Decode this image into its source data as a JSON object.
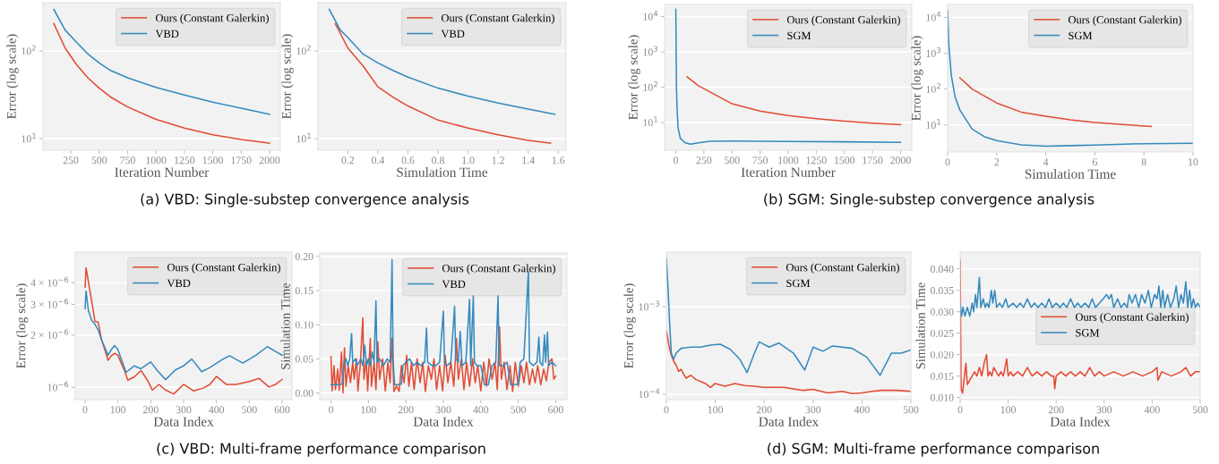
{
  "chart_data": [
    {
      "type": "line",
      "xlabel": "Iteration Number",
      "ylabel": "Error (log scale)",
      "annotations": [
        "(a) VBD: Single-substep convergence analysis"
      ],
      "log": "y",
      "grid": "y",
      "legend": "top right",
      "xlim": [
        5,
        2095
      ],
      "ylim": [
        7.4,
        355
      ],
      "xticks": [
        250,
        500,
        750,
        1000,
        1250,
        1500,
        1750,
        2000
      ],
      "yticks": [
        {
          "value": 10,
          "label": "10$^{1}$"
        },
        {
          "value": 100,
          "label": "10$^{2}$"
        }
      ],
      "series": [
        {
          "name": "Ours (Constant Galerkin)",
          "color": "#e24a33",
          "x": [
            100,
            200,
            300,
            400,
            500,
            600,
            750,
            1000,
            1250,
            1500,
            1750,
            2000
          ],
          "values": [
            205,
            108,
            70,
            49.5,
            37.7,
            29.9,
            23,
            16.6,
            13.2,
            11.1,
            9.8,
            8.9
          ]
        },
        {
          "name": "VBD",
          "color": "#348abd",
          "x": [
            100,
            200,
            300,
            400,
            500,
            600,
            750,
            1000,
            1250,
            1500,
            1750,
            2000
          ],
          "values": [
            298,
            173,
            126,
            92.5,
            73,
            60,
            49.5,
            38.5,
            31.5,
            26.1,
            22.3,
            19.0
          ]
        }
      ]
    },
    {
      "type": "line",
      "xlabel": "Simulation Time",
      "ylabel": "Error (log scale)",
      "log": "y",
      "grid": "y",
      "legend": "top right",
      "xlim": [
        0.001,
        1.652
      ],
      "ylim": [
        7.4,
        355
      ],
      "xticks": [
        0.2,
        0.4,
        0.6,
        0.8,
        {
          "value": 1.0,
          "label": "1.0"
        },
        1.2,
        1.4,
        1.6
      ],
      "yticks": [
        {
          "value": 10,
          "label": "10$^{1}$"
        },
        {
          "value": 100,
          "label": "10$^{2}$"
        }
      ],
      "series": [
        {
          "name": "Ours (Constant Galerkin)",
          "color": "#e24a33",
          "x": [
            0.116,
            0.2,
            0.3,
            0.4,
            0.5,
            0.6,
            0.8,
            1.0,
            1.2,
            1.4,
            1.549
          ],
          "values": [
            205,
            108,
            68,
            39,
            29.8,
            23.6,
            16.3,
            13.2,
            11.1,
            9.6,
            8.9
          ]
        },
        {
          "name": "VBD",
          "color": "#348abd",
          "x": [
            0.076,
            0.15,
            0.2,
            0.3,
            0.4,
            0.5,
            0.6,
            0.8,
            1.0,
            1.2,
            1.4,
            1.577
          ],
          "values": [
            298,
            173,
            142,
            92.5,
            73,
            60,
            50.3,
            37.7,
            30.6,
            25.5,
            21.8,
            19
          ]
        }
      ]
    },
    {
      "type": "line",
      "xlabel": "Iteration Number",
      "ylabel": "Error (log scale)",
      "annotations": [
        "(b) SGM: Single-substep convergence analysis"
      ],
      "log": "y",
      "grid": "y",
      "legend": "top right",
      "xlim": [
        -100,
        2100
      ],
      "ylim": [
        1.65,
        22000
      ],
      "xticks": [
        0,
        250,
        500,
        750,
        1000,
        1250,
        1500,
        1750,
        2000
      ],
      "yticks": [
        {
          "value": 10,
          "label": "10$^{1}$"
        },
        {
          "value": 100,
          "label": "10$^{2}$"
        },
        {
          "value": 1000,
          "label": "10$^{3}$"
        },
        {
          "value": 10000,
          "label": "10$^{4}$"
        }
      ],
      "series": [
        {
          "name": "Ours (Constant Galerkin)",
          "color": "#e24a33",
          "x": [
            100,
            200,
            250,
            500,
            750,
            1000,
            1250,
            1500,
            1750,
            2000
          ],
          "values": [
            198,
            110,
            91,
            34,
            21,
            15.7,
            12.9,
            11,
            9.6,
            8.7
          ]
        },
        {
          "name": "SGM",
          "color": "#348abd",
          "x": [
            0,
            3,
            6,
            10,
            20,
            40,
            80,
            130,
            200,
            300,
            500,
            1000,
            1500,
            2000
          ],
          "values": [
            16000,
            1000,
            100,
            30,
            7,
            3.6,
            2.7,
            2.45,
            2.65,
            2.95,
            3.0,
            2.9,
            2.85,
            2.75
          ]
        }
      ]
    },
    {
      "type": "line",
      "xlabel": "Simulation Time",
      "ylabel": "Error (log scale)",
      "log": "y",
      "grid": "y",
      "legend": "top right",
      "xlim": [
        0,
        10
      ],
      "ylim": [
        1.76,
        23000
      ],
      "xticks": [
        0,
        2,
        4,
        6,
        8,
        10
      ],
      "yticks": [
        {
          "value": 10,
          "label": "10$^{1}$"
        },
        {
          "value": 100,
          "label": "10$^{2}$"
        },
        {
          "value": 1000,
          "label": "10$^{3}$"
        },
        {
          "value": 10000,
          "label": "10$^{4}$"
        }
      ],
      "series": [
        {
          "name": "Ours (Constant Galerkin)",
          "color": "#e24a33",
          "x": [
            0.5,
            1,
            2,
            3,
            4,
            5,
            6,
            7,
            8.3
          ],
          "values": [
            207,
            100,
            41,
            22.8,
            17.6,
            14,
            11.7,
            10.4,
            9.1
          ]
        },
        {
          "name": "SGM",
          "color": "#348abd",
          "x": [
            0,
            0.05,
            0.15,
            0.3,
            0.5,
            1,
            1.5,
            2,
            3,
            4,
            5,
            6,
            8,
            10
          ],
          "values": [
            16000,
            1700,
            245,
            62,
            26,
            7.7,
            4.7,
            3.66,
            2.8,
            2.55,
            2.65,
            2.75,
            3.0,
            3.1
          ]
        }
      ]
    },
    {
      "type": "line",
      "xlabel": "Data Index",
      "ylabel": "Error (log scale)",
      "annotations": [
        "(c) VBD: Multi-frame performance comparison"
      ],
      "log": "y",
      "grid": "y",
      "legend": "top right",
      "xlim": [
        -30,
        630
      ],
      "ylim": [
        8.5e-07,
        6e-06
      ],
      "xticks": [
        0,
        100,
        200,
        300,
        400,
        500,
        600
      ],
      "yticks": [
        {
          "value": 1e-06,
          "label": "10$^{−6}$"
        },
        {
          "value": 2e-06,
          "label": "2 × 10$^{−6}$"
        },
        {
          "value": 3e-06,
          "label": "3 × 10$^{−6}$"
        },
        {
          "value": 4e-06,
          "label": "4 × 10$^{−6}$"
        }
      ],
      "series": [
        {
          "name": "Ours (Constant Galerkin)",
          "color": "#e24a33",
          "x": [
            0,
            3,
            10,
            20,
            30,
            40,
            50,
            60,
            70,
            80,
            90,
            100,
            110,
            120,
            130,
            150,
            170,
            190,
            205,
            225,
            245,
            270,
            300,
            330,
            360,
            380,
            400,
            430,
            460,
            500,
            530,
            560,
            580,
            600
          ],
          "values": [
            3.77e-06,
            4.87e-06,
            4.07e-06,
            3.14e-06,
            2.4e-06,
            2.37e-06,
            1.88e-06,
            1.65e-06,
            1.43e-06,
            1.52e-06,
            1.57e-06,
            1.53e-06,
            1.38e-06,
            1.25e-06,
            1.1e-06,
            1.15e-06,
            1.25e-06,
            1.1e-06,
            9.65e-07,
            1.04e-06,
            9.65e-07,
            9.17e-07,
            1.04e-06,
            9.55e-07,
            9.9e-07,
            1.04e-06,
            1.155e-06,
            1.04e-06,
            1.04e-06,
            1.08e-06,
            1.125e-06,
            1.005e-06,
            1.04e-06,
            1.11e-06
          ]
        },
        {
          "name": "VBD",
          "color": "#348abd",
          "x": [
            0,
            3,
            10,
            20,
            30,
            40,
            50,
            60,
            70,
            80,
            90,
            100,
            110,
            125,
            150,
            170,
            200,
            220,
            245,
            275,
            300,
            325,
            355,
            380,
            420,
            440,
            480,
            520,
            555,
            580,
            600
          ],
          "values": [
            2.84e-06,
            3.58e-06,
            2.77e-06,
            2.43e-06,
            2.31e-06,
            2.14e-06,
            1.88e-06,
            1.7e-06,
            1.53e-06,
            1.65e-06,
            1.74e-06,
            1.65e-06,
            1.455e-06,
            1.22e-06,
            1.33e-06,
            1.28e-06,
            1.4e-06,
            1.25e-06,
            1.108e-06,
            1.26e-06,
            1.33e-06,
            1.455e-06,
            1.23e-06,
            1.3e-06,
            1.455e-06,
            1.52e-06,
            1.38e-06,
            1.53e-06,
            1.715e-06,
            1.61e-06,
            1.53e-06
          ]
        }
      ]
    },
    {
      "type": "line",
      "xlabel": "Data Index",
      "ylabel": "Simulation Time",
      "grid": "y",
      "legend": "top right",
      "xlim": [
        -30,
        630
      ],
      "ylim": [
        -0.0098,
        0.205
      ],
      "xticks": [
        0,
        100,
        200,
        300,
        400,
        500,
        600
      ],
      "yticks": [
        {
          "value": 0,
          "label": "0.00"
        },
        {
          "value": 0.05,
          "label": "0.05"
        },
        {
          "value": 0.1,
          "label": "0.10"
        },
        {
          "value": 0.15,
          "label": "0.15"
        },
        {
          "value": 0.2,
          "label": "0.20"
        }
      ],
      "series": [
        {
          "name": "Ours (Constant Galerkin)",
          "color": "#e24a33",
          "x": [
            0,
            3,
            8,
            12,
            18,
            22,
            28,
            32,
            36,
            40,
            46,
            52,
            58,
            62,
            68,
            72,
            78,
            85,
            88,
            94,
            98,
            105,
            108,
            115,
            120,
            125,
            130,
            138,
            145,
            152,
            158,
            163,
            168,
            175,
            182,
            188,
            195,
            202,
            208,
            215,
            222,
            230,
            238,
            245,
            252,
            260,
            268,
            275,
            282,
            290,
            298,
            305,
            312,
            320,
            328,
            335,
            340,
            348,
            355,
            362,
            370,
            378,
            385,
            392,
            400,
            408,
            415,
            422,
            430,
            438,
            444,
            450,
            455,
            462,
            470,
            478,
            485,
            492,
            500,
            508,
            515,
            522,
            530,
            538,
            545,
            552,
            560,
            568,
            575,
            582,
            590,
            595,
            600
          ],
          "values": [
            0.053,
            0.003,
            0.04,
            0.005,
            0.035,
            0.004,
            0.06,
            0.0,
            0.066,
            0.01,
            0.04,
            0.015,
            0.045,
            0.02,
            0.05,
            0.003,
            0.04,
            0.11,
            0.02,
            0.05,
            0.003,
            0.08,
            0.01,
            0.045,
            0.005,
            0.075,
            0.02,
            0.05,
            0.003,
            0.045,
            0.015,
            0.08,
            0.002,
            0.01,
            0.002,
            0.04,
            0.015,
            0.055,
            0.01,
            0.045,
            0.005,
            0.05,
            0.015,
            0.045,
            0.002,
            0.04,
            0.02,
            0.05,
            0.005,
            0.04,
            0.003,
            0.055,
            0.015,
            0.045,
            0.01,
            0.08,
            0.02,
            0.05,
            0.005,
            0.045,
            0.01,
            0.05,
            0.015,
            0.04,
            0.003,
            0.045,
            0.01,
            0.05,
            0.02,
            0.045,
            0.005,
            0.097,
            0.02,
            0.045,
            0.005,
            0.04,
            0.002,
            0.045,
            0.01,
            0.04,
            0.015,
            0.045,
            0.012,
            0.035,
            0.015,
            0.04,
            0.012,
            0.035,
            0.018,
            0.045,
            0.05,
            0.02,
            0.025
          ]
        },
        {
          "name": "VBD",
          "color": "#348abd",
          "x": [
            0,
            10,
            20,
            30,
            35,
            40,
            45,
            50,
            55,
            58,
            65,
            70,
            80,
            85,
            90,
            95,
            100,
            105,
            110,
            115,
            120,
            123,
            130,
            140,
            150,
            158,
            163,
            166,
            170,
            180,
            188,
            192,
            200,
            210,
            220,
            230,
            240,
            250,
            255,
            258,
            270,
            280,
            290,
            300,
            303,
            310,
            320,
            330,
            333,
            340,
            345,
            350,
            360,
            370,
            373,
            380,
            383,
            390,
            400,
            410,
            420,
            430,
            440,
            446,
            449,
            460,
            470,
            480,
            490,
            500,
            505,
            515,
            527,
            530,
            540,
            550,
            555,
            558,
            565,
            570,
            573,
            578,
            581,
            590,
            600
          ],
          "values": [
            0.012,
            0.012,
            0.012,
            0.013,
            0.045,
            0.05,
            0.04,
            0.05,
            0.087,
            0.045,
            0.05,
            0.04,
            0.05,
            0.04,
            0.07,
            0.04,
            0.05,
            0.04,
            0.06,
            0.045,
            0.135,
            0.045,
            0.05,
            0.04,
            0.05,
            0.045,
            0.195,
            0.045,
            0.012,
            0.012,
            0.013,
            0.04,
            0.045,
            0.05,
            0.04,
            0.045,
            0.04,
            0.045,
            0.095,
            0.045,
            0.04,
            0.04,
            0.045,
            0.12,
            0.045,
            0.04,
            0.045,
            0.127,
            0.05,
            0.045,
            0.09,
            0.04,
            0.045,
            0.137,
            0.04,
            0.142,
            0.045,
            0.04,
            0.04,
            0.012,
            0.012,
            0.04,
            0.045,
            0.142,
            0.04,
            0.04,
            0.045,
            0.012,
            0.012,
            0.013,
            0.045,
            0.05,
            0.178,
            0.045,
            0.04,
            0.045,
            0.082,
            0.045,
            0.04,
            0.085,
            0.045,
            0.089,
            0.04,
            0.045,
            0.04
          ]
        }
      ]
    },
    {
      "type": "line",
      "xlabel": "Data Index",
      "ylabel": "Error (log scale)",
      "annotations": [
        "(d) SGM: Multi-frame performance comparison"
      ],
      "log": "y",
      "grid": "y",
      "legend": "top right",
      "xlim": [
        0,
        500
      ],
      "ylim": [
        8.7e-05,
        0.0042
      ],
      "xticks": [
        0,
        100,
        200,
        300,
        400,
        500
      ],
      "yticks": [
        {
          "value": 0.0001,
          "label": "10$^{−4}$"
        },
        {
          "value": 0.001,
          "label": "10$^{−3}$"
        }
      ],
      "series": [
        {
          "name": "Ours (Constant Galerkin)",
          "color": "#e24a33",
          "x": [
            0,
            5,
            10,
            15,
            20,
            25,
            30,
            40,
            50,
            60,
            80,
            90,
            100,
            120,
            140,
            160,
            180,
            200,
            240,
            280,
            300,
            330,
            360,
            380,
            400,
            420,
            440,
            470,
            500
          ],
          "values": [
            0.00053,
            0.000365,
            0.00028,
            0.000239,
            0.000215,
            0.000183,
            0.000193,
            0.000153,
            0.000165,
            0.000148,
            0.000133,
            0.00012,
            0.000133,
            0.000124,
            0.000133,
            0.000126,
            0.000124,
            0.00012,
            0.00012,
            0.000111,
            0.000114,
            0.000104,
            0.000108,
            0.000102,
            0.000104,
            0.000108,
            0.000111,
            0.000111,
            0.000108
          ]
        },
        {
          "name": "SGM",
          "color": "#348abd",
          "x": [
            0,
            3,
            6,
            10,
            15,
            20,
            30,
            50,
            70,
            90,
            110,
            130,
            150,
            165,
            180,
            190,
            210,
            230,
            260,
            283,
            300,
            320,
            340,
            380,
            410,
            437,
            460,
            480,
            500
          ],
          "values": [
            0.00357,
            0.00179,
            0.00077,
            0.000295,
            0.000252,
            0.000295,
            0.000335,
            0.000346,
            0.000346,
            0.000365,
            0.000373,
            0.000328,
            0.000252,
            0.000177,
            0.000295,
            0.000397,
            0.000346,
            0.000385,
            0.000295,
            0.000189,
            0.000346,
            0.00031,
            0.000357,
            0.000335,
            0.000265,
            0.000165,
            0.000295,
            0.000295,
            0.000321
          ]
        }
      ]
    },
    {
      "type": "line",
      "xlabel": "Data Index",
      "ylabel": "Simulation Time",
      "grid": "y",
      "legend": "right",
      "xlim": [
        0,
        500
      ],
      "ylim": [
        0.0095,
        0.0439
      ],
      "xticks": [
        0,
        100,
        200,
        300,
        400,
        500
      ],
      "yticks": [
        {
          "value": 0.01,
          "label": "0.010"
        },
        {
          "value": 0.015,
          "label": "0.015"
        },
        {
          "value": 0.02,
          "label": "0.020"
        },
        {
          "value": 0.025,
          "label": "0.025"
        },
        {
          "value": 0.03,
          "label": "0.030"
        },
        {
          "value": 0.035,
          "label": "0.035"
        },
        {
          "value": 0.04,
          "label": "0.040"
        }
      ],
      "series": [
        {
          "name": "Ours (Constant Galerkin)",
          "color": "#e24a33",
          "x": [
            0,
            2,
            5,
            8,
            12,
            15,
            20,
            25,
            30,
            35,
            40,
            45,
            50,
            55,
            58,
            62,
            66,
            70,
            75,
            80,
            85,
            90,
            97,
            100,
            105,
            110,
            120,
            130,
            140,
            150,
            160,
            170,
            180,
            190,
            195,
            197,
            200,
            210,
            220,
            230,
            240,
            250,
            260,
            270,
            280,
            290,
            300,
            320,
            340,
            360,
            380,
            400,
            410,
            412,
            420,
            440,
            460,
            470,
            480,
            490,
            500
          ],
          "values": [
            0.042,
            0.012,
            0.011,
            0.014,
            0.018,
            0.013,
            0.014,
            0.015,
            0.016,
            0.015,
            0.017,
            0.015,
            0.018,
            0.02,
            0.015,
            0.016,
            0.015,
            0.017,
            0.016,
            0.015,
            0.016,
            0.015,
            0.019,
            0.015,
            0.016,
            0.015,
            0.016,
            0.015,
            0.017,
            0.015,
            0.016,
            0.015,
            0.016,
            0.015,
            0.015,
            0.012,
            0.015,
            0.016,
            0.015,
            0.016,
            0.015,
            0.016,
            0.015,
            0.017,
            0.015,
            0.016,
            0.015,
            0.016,
            0.015,
            0.016,
            0.015,
            0.016,
            0.017,
            0.014,
            0.016,
            0.015,
            0.016,
            0.017,
            0.015,
            0.016,
            0.016
          ]
        },
        {
          "name": "SGM",
          "color": "#348abd",
          "x": [
            0,
            3,
            6,
            10,
            15,
            20,
            25,
            28,
            32,
            35,
            40,
            43,
            48,
            52,
            56,
            60,
            65,
            68,
            72,
            76,
            82,
            88,
            95,
            100,
            110,
            118,
            125,
            132,
            140,
            148,
            155,
            162,
            170,
            178,
            185,
            192,
            200,
            208,
            215,
            222,
            230,
            238,
            245,
            252,
            260,
            268,
            275,
            282,
            290,
            298,
            305,
            310,
            315,
            320,
            328,
            335,
            342,
            348,
            352,
            358,
            365,
            372,
            378,
            385,
            392,
            398,
            405,
            410,
            414,
            418,
            422,
            426,
            432,
            438,
            445,
            450,
            455,
            460,
            465,
            470,
            474,
            478,
            482,
            486,
            490,
            495,
            500
          ],
          "values": [
            0.032,
            0.029,
            0.031,
            0.029,
            0.031,
            0.029,
            0.032,
            0.03,
            0.034,
            0.031,
            0.038,
            0.031,
            0.033,
            0.031,
            0.032,
            0.031,
            0.035,
            0.032,
            0.035,
            0.031,
            0.032,
            0.031,
            0.033,
            0.031,
            0.032,
            0.031,
            0.032,
            0.031,
            0.033,
            0.031,
            0.032,
            0.031,
            0.032,
            0.031,
            0.033,
            0.031,
            0.032,
            0.031,
            0.032,
            0.031,
            0.033,
            0.031,
            0.032,
            0.031,
            0.032,
            0.031,
            0.033,
            0.031,
            0.032,
            0.033,
            0.034,
            0.033,
            0.034,
            0.031,
            0.033,
            0.031,
            0.032,
            0.031,
            0.034,
            0.032,
            0.034,
            0.031,
            0.034,
            0.032,
            0.035,
            0.031,
            0.034,
            0.033,
            0.036,
            0.031,
            0.035,
            0.031,
            0.034,
            0.031,
            0.033,
            0.036,
            0.031,
            0.034,
            0.032,
            0.037,
            0.031,
            0.035,
            0.031,
            0.033,
            0.031,
            0.032,
            0.031
          ]
        }
      ]
    }
  ]
}
